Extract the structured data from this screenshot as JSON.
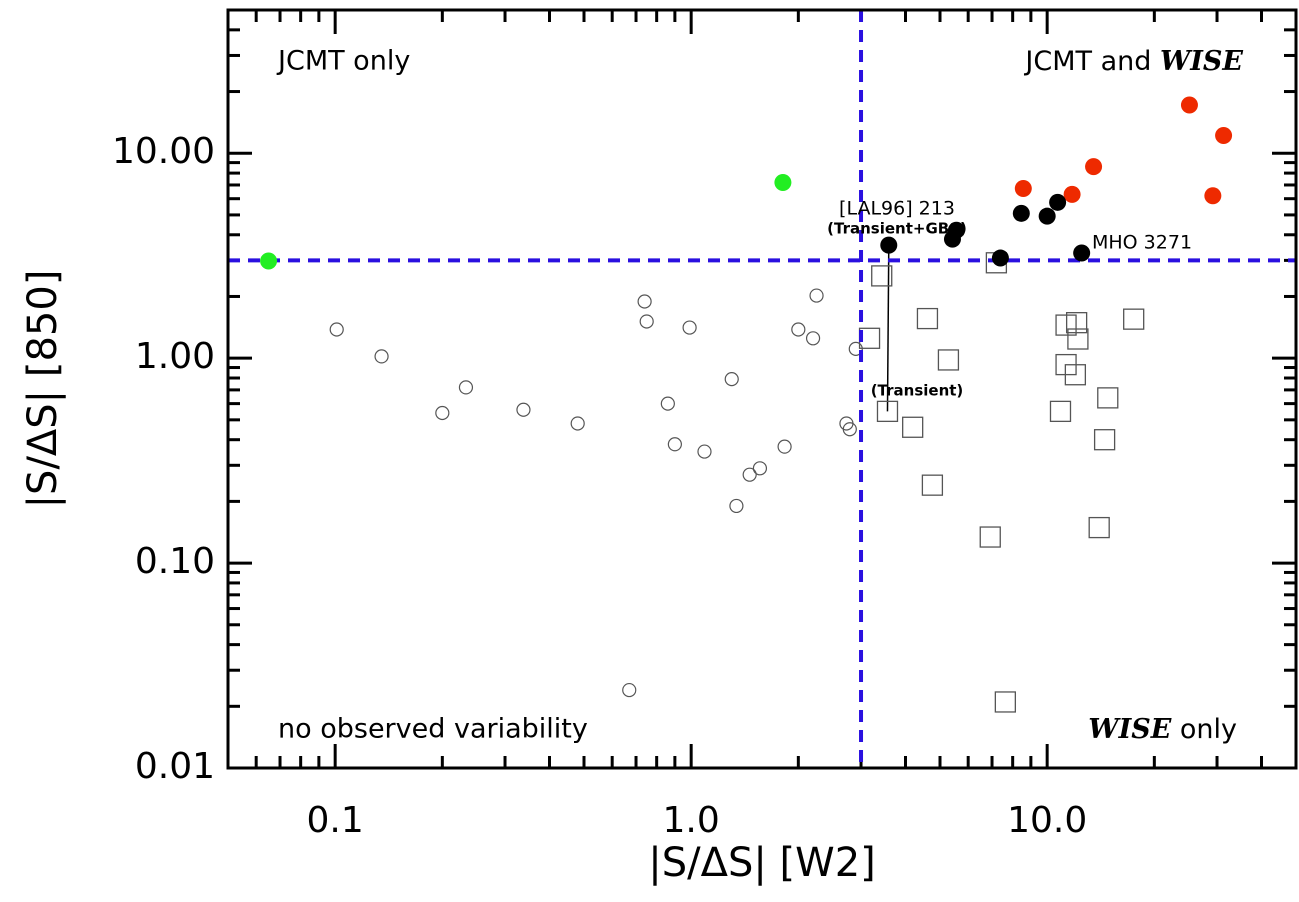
{
  "chart_data": {
    "type": "scatter",
    "xlabel": "|S/ΔS| [W2]",
    "ylabel": "|S/ΔS| [850]",
    "log_x": true,
    "log_y": true,
    "xlim": [
      0.05,
      50
    ],
    "ylim": [
      0.01,
      50
    ],
    "xticks": [
      0.1,
      {
        "value": 1,
        "label": "1.0"
      },
      {
        "value": 10,
        "label": "10.0"
      }
    ],
    "yticks": [
      0.01,
      {
        "value": 0.1,
        "label": "0.10"
      },
      {
        "value": 1,
        "label": "1.00"
      },
      {
        "value": 10,
        "label": "10.00"
      }
    ],
    "xminorticks": [
      0.06,
      0.07,
      0.08,
      0.09,
      0.2,
      0.3,
      0.4,
      0.5,
      0.6,
      0.7,
      0.8,
      0.9,
      2,
      3,
      4,
      5,
      6,
      7,
      8,
      9,
      20,
      30,
      40
    ],
    "yminorticks": [
      0.02,
      0.03,
      0.04,
      0.05,
      0.06,
      0.07,
      0.08,
      0.09,
      0.2,
      0.3,
      0.4,
      0.5,
      0.6,
      0.7,
      0.8,
      0.9,
      2,
      3,
      4,
      5,
      6,
      7,
      8,
      9,
      20,
      30,
      40
    ],
    "vlines": [
      3
    ],
    "hlines": [
      3
    ],
    "line_color": "#2a10e0",
    "quadrant_labels": {
      "top_left": "JCMT only",
      "top_right": [
        "JCMT and",
        "WISE"
      ],
      "bottom_left": "no observed variability",
      "bottom_right": [
        "WISE",
        "only"
      ]
    },
    "annotations": [
      "[LAL96] 213",
      "(Transient+GBS)",
      "MHO 3271",
      "(Transient)"
    ],
    "series": [
      {
        "marker": "circle",
        "filled": false,
        "color": "#555555",
        "x": [
          0.101,
          0.135,
          0.2,
          0.233,
          0.338,
          0.48,
          0.74,
          0.75,
          0.99,
          0.86,
          0.9,
          1.09,
          1.3,
          1.34,
          1.46,
          1.56,
          1.83,
          2.0,
          2.2,
          2.25,
          2.9,
          2.73,
          2.79,
          0.67
        ],
        "values": [
          1.38,
          1.02,
          0.54,
          0.72,
          0.56,
          0.48,
          1.89,
          1.51,
          1.41,
          0.6,
          0.38,
          0.35,
          0.79,
          0.19,
          0.27,
          0.29,
          0.37,
          1.38,
          1.25,
          2.02,
          1.11,
          0.48,
          0.45,
          0.024
        ]
      },
      {
        "marker": "square",
        "filled": false,
        "color": "#555555",
        "x": [
          3.43,
          3.17,
          3.56,
          4.19,
          4.61,
          4.76,
          5.28,
          6.92,
          7.2,
          7.63,
          10.9,
          11.3,
          11.3,
          12.1,
          12.2,
          12.0,
          14.8,
          14.5,
          14.0,
          17.5
        ],
        "values": [
          2.52,
          1.25,
          0.55,
          0.46,
          1.56,
          0.24,
          0.98,
          0.134,
          2.92,
          0.021,
          0.55,
          1.45,
          0.93,
          1.49,
          1.24,
          0.83,
          0.64,
          0.4,
          0.149,
          1.55
        ]
      },
      {
        "marker": "circle",
        "filled": true,
        "color": "#22ee22",
        "x": [
          0.065,
          1.81
        ],
        "values": [
          2.98,
          7.2
        ]
      },
      {
        "marker": "circle",
        "filled": true,
        "color": "#ee2a00",
        "x": [
          8.57,
          11.75,
          13.5,
          25.1,
          31.3,
          29.2
        ],
        "values": [
          6.73,
          6.3,
          8.6,
          17.2,
          12.2,
          6.2
        ]
      },
      {
        "marker": "circle",
        "filled": true,
        "color": "#000000",
        "x": [
          3.59,
          5.42,
          5.56,
          7.39,
          8.46,
          10,
          10.7,
          12.5
        ],
        "values": [
          3.56,
          3.81,
          4.21,
          3.08,
          5.09,
          4.93,
          5.76,
          3.26
        ]
      }
    ]
  }
}
